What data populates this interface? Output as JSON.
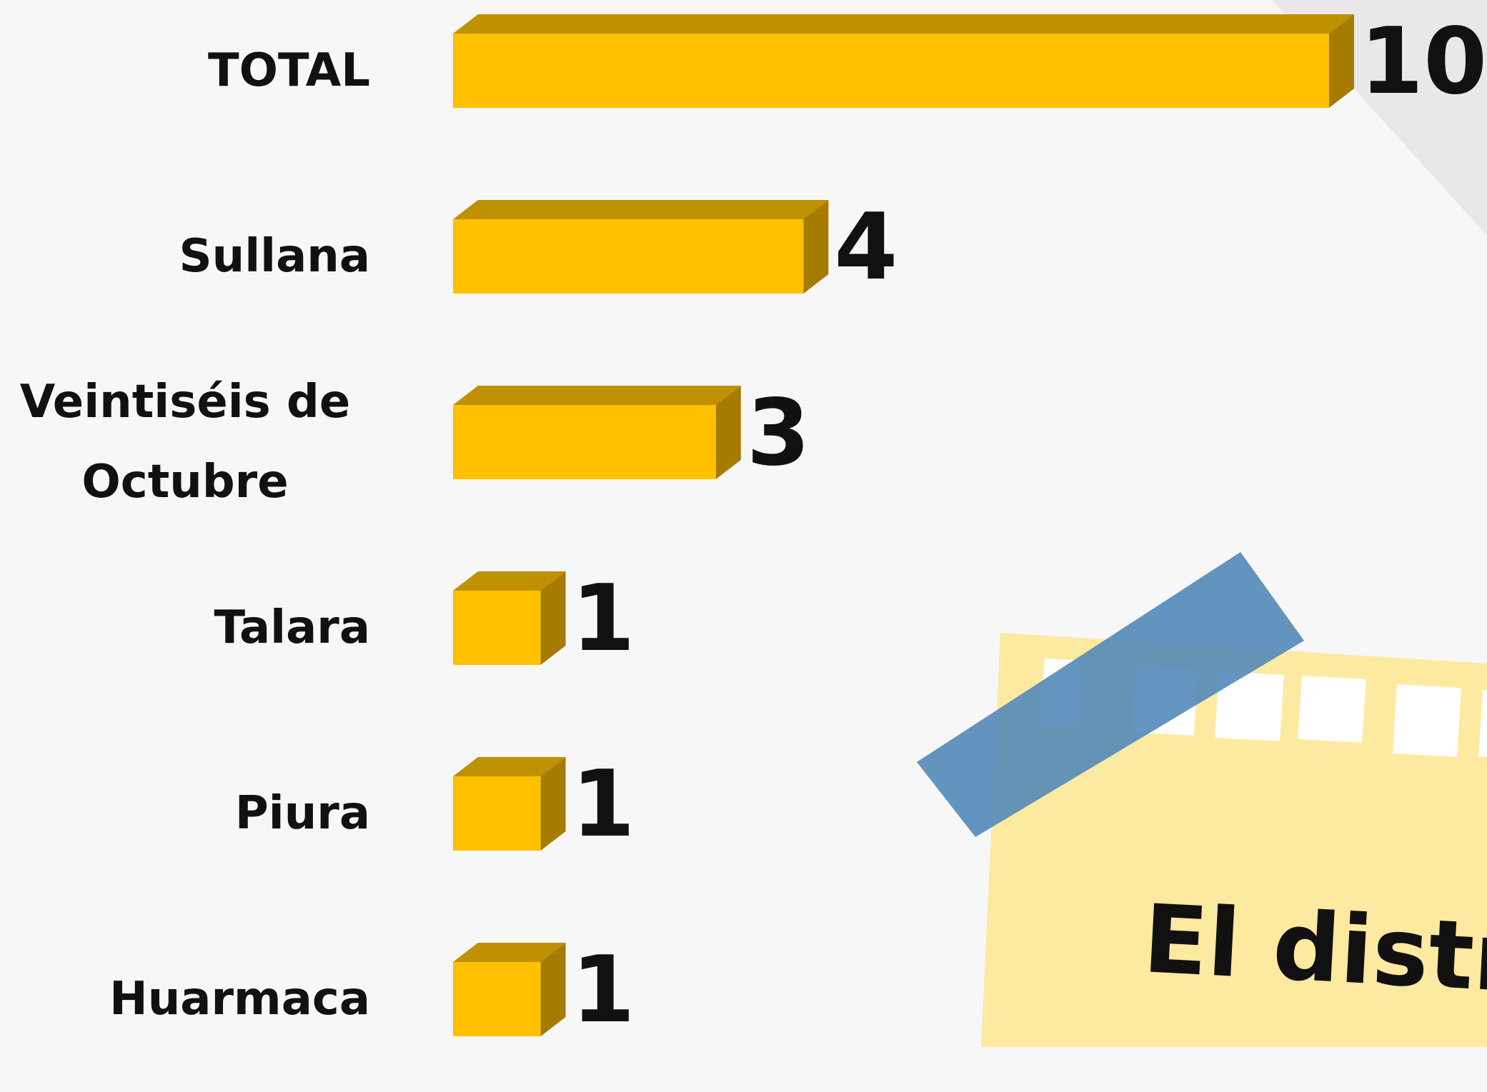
{
  "chart_data": {
    "type": "bar",
    "categories": [
      "TOTAL",
      "Sullana",
      "Veintiséis de Octubre",
      "Talara",
      "Piura",
      "Huarmaca"
    ],
    "values": [
      10,
      4,
      3,
      1,
      1,
      1
    ],
    "color": "#ffc000",
    "annotation": "El distri"
  }
}
